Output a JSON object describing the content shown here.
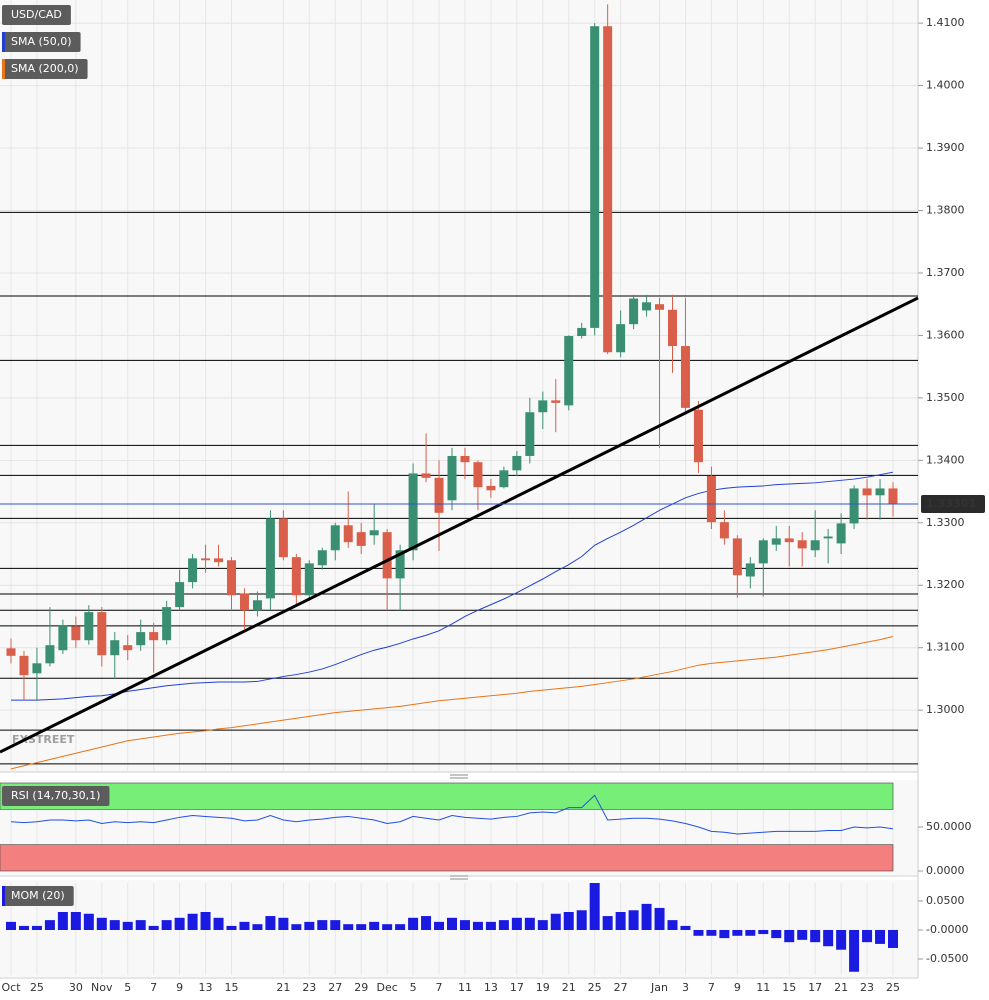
{
  "chart_data": [
    {
      "type": "candlestick",
      "watermark": "FXSTREET",
      "categories": [
        "Oct",
        null,
        "25",
        null,
        null,
        "30",
        null,
        "Nov",
        null,
        "5",
        null,
        "7",
        null,
        "9",
        null,
        "13",
        null,
        "15",
        null,
        null,
        null,
        "21",
        null,
        "23",
        null,
        "27",
        null,
        "29",
        null,
        "Dec",
        null,
        "5",
        null,
        "7",
        null,
        "11",
        null,
        "13",
        null,
        "17",
        null,
        "19",
        null,
        "21",
        null,
        "25",
        null,
        "27",
        null,
        null,
        "Jan",
        null,
        "3",
        null,
        "7",
        null,
        "9",
        null,
        "11",
        null,
        "15",
        null,
        "17",
        null,
        "21",
        null,
        "23",
        null,
        "25"
      ],
      "ylim": [
        1.2901,
        1.4137
      ],
      "yticks": [
        {
          "value": 1.3,
          "label": "1.3000"
        },
        {
          "value": 1.31,
          "label": "1.3100"
        },
        {
          "value": 1.32,
          "label": "1.3200"
        },
        {
          "value": 1.33,
          "label": "1.3300"
        },
        {
          "value": 1.34,
          "label": "1.3400"
        },
        {
          "value": 1.35,
          "label": "1.3500"
        },
        {
          "value": 1.36,
          "label": "1.3600"
        },
        {
          "value": 1.37,
          "label": "1.3700"
        },
        {
          "value": 1.38,
          "label": "1.3800"
        },
        {
          "value": 1.39,
          "label": "1.3900"
        },
        {
          "value": 1.4,
          "label": "1.4000"
        },
        {
          "value": 1.41,
          "label": "1.4100"
        }
      ],
      "grid": true,
      "last_price": 1.33301,
      "last_price_color": "#3355cc",
      "levels": [
        1.3797,
        1.3663,
        1.356,
        1.3424,
        1.3376,
        1.3307,
        1.3227,
        1.3186,
        1.316,
        1.3135,
        1.3051,
        1.2968,
        1.2914
      ],
      "levels_color": "#000000",
      "trendline": {
        "values": [
          1.2933,
          1.366
        ],
        "color": "#000000"
      },
      "series": [
        {
          "name": "USD/CAD",
          "up_color": "#3a8f72",
          "down_color": "#d95f4b",
          "open": [
            1.3099,
            1.3087,
            1.3059,
            1.3075,
            1.3096,
            1.3134,
            1.3112,
            1.3157,
            1.3088,
            1.3104,
            1.3104,
            1.3125,
            1.3112,
            1.3165,
            1.3205,
            1.3243,
            1.3243,
            1.324,
            1.3187,
            1.316,
            1.3179,
            1.3307,
            1.3245,
            1.3184,
            1.3232,
            1.3256,
            1.3296,
            1.3285,
            1.328,
            1.3285,
            1.3211,
            1.3256,
            1.3379,
            1.3372,
            1.3336,
            1.3407,
            1.3397,
            1.3359,
            1.3357,
            1.3384,
            1.3407,
            1.3477,
            1.3496,
            1.3488,
            1.3599,
            1.3612,
            1.4095,
            1.3573,
            1.3618,
            1.364,
            1.365,
            1.3641,
            1.3583,
            1.3481,
            1.3375,
            1.3301,
            1.3275,
            1.3214,
            1.3235,
            1.3265,
            1.3275,
            1.3272,
            1.3256,
            1.3275,
            1.3267,
            1.3299,
            1.3355,
            1.3344,
            1.3355
          ],
          "high": [
            1.3115,
            1.3095,
            1.31,
            1.3165,
            1.3145,
            1.315,
            1.3168,
            1.3165,
            1.3125,
            1.312,
            1.3145,
            1.314,
            1.3175,
            1.3225,
            1.325,
            1.3265,
            1.3265,
            1.3245,
            1.3195,
            1.319,
            1.332,
            1.332,
            1.325,
            1.324,
            1.326,
            1.33,
            1.335,
            1.33,
            1.333,
            1.329,
            1.3265,
            1.3395,
            1.3443,
            1.34,
            1.342,
            1.342,
            1.34,
            1.337,
            1.339,
            1.3415,
            1.35,
            1.351,
            1.353,
            1.36,
            1.362,
            1.41,
            1.413,
            1.364,
            1.3665,
            1.3665,
            1.366,
            1.3665,
            1.366,
            1.3495,
            1.339,
            1.332,
            1.328,
            1.3245,
            1.3275,
            1.3295,
            1.3295,
            1.3285,
            1.332,
            1.329,
            1.3315,
            1.336,
            1.337,
            1.337,
            1.3365
          ],
          "low": [
            1.3075,
            1.3016,
            1.3015,
            1.307,
            1.309,
            1.31,
            1.3105,
            1.307,
            1.305,
            1.308,
            1.3095,
            1.306,
            1.3105,
            1.316,
            1.3195,
            1.322,
            1.323,
            1.316,
            1.313,
            1.315,
            1.316,
            1.324,
            1.317,
            1.3175,
            1.3225,
            1.324,
            1.326,
            1.325,
            1.3265,
            1.316,
            1.316,
            1.324,
            1.3365,
            1.3255,
            1.332,
            1.337,
            1.332,
            1.334,
            1.3355,
            1.3375,
            1.3395,
            1.345,
            1.3445,
            1.348,
            1.3595,
            1.36,
            1.357,
            1.3565,
            1.361,
            1.363,
            1.342,
            1.354,
            1.3475,
            1.338,
            1.329,
            1.3265,
            1.318,
            1.3195,
            1.3182,
            1.3255,
            1.323,
            1.323,
            1.3245,
            1.3235,
            1.325,
            1.329,
            1.3305,
            1.3305,
            1.331
          ],
          "close": [
            1.3087,
            1.3056,
            1.3075,
            1.3104,
            1.3135,
            1.3112,
            1.3157,
            1.3088,
            1.3112,
            1.3096,
            1.3125,
            1.3112,
            1.3165,
            1.3205,
            1.3243,
            1.324,
            1.3237,
            1.3184,
            1.316,
            1.3176,
            1.3307,
            1.3245,
            1.3184,
            1.3235,
            1.3256,
            1.3296,
            1.3269,
            1.3263,
            1.3288,
            1.3211,
            1.3256,
            1.3379,
            1.3372,
            1.3316,
            1.3407,
            1.3397,
            1.3357,
            1.3352,
            1.3384,
            1.3407,
            1.3477,
            1.3496,
            1.3492,
            1.3599,
            1.3612,
            1.4095,
            1.3573,
            1.3618,
            1.3659,
            1.3653,
            1.3641,
            1.3583,
            1.3484,
            1.3397,
            1.3301,
            1.3275,
            1.3216,
            1.3235,
            1.3272,
            1.3275,
            1.3269,
            1.3259,
            1.3272,
            1.3278,
            1.3299,
            1.3355,
            1.3344,
            1.3355,
            1.333
          ]
        },
        {
          "name": "SMA (50,0)",
          "color": "#2040d0",
          "values": [
            1.3016,
            1.3016,
            1.3016,
            1.3017,
            1.3018,
            1.302,
            1.3022,
            1.3023,
            1.3026,
            1.303,
            1.3033,
            1.3036,
            1.3039,
            1.3041,
            1.3043,
            1.3044,
            1.3045,
            1.3045,
            1.3045,
            1.3046,
            1.305,
            1.3054,
            1.3057,
            1.3061,
            1.3066,
            1.3073,
            1.3081,
            1.3089,
            1.3096,
            1.3101,
            1.3107,
            1.3114,
            1.312,
            1.3127,
            1.3138,
            1.315,
            1.316,
            1.3169,
            1.3178,
            1.3188,
            1.3199,
            1.321,
            1.3222,
            1.3233,
            1.3246,
            1.3264,
            1.3275,
            1.3285,
            1.3296,
            1.3308,
            1.332,
            1.333,
            1.334,
            1.3347,
            1.3352,
            1.3355,
            1.3357,
            1.3358,
            1.3359,
            1.3361,
            1.3362,
            1.3363,
            1.3364,
            1.3366,
            1.3368,
            1.337,
            1.3373,
            1.3377,
            1.3381
          ]
        },
        {
          "name": "SMA (200,0)",
          "color": "#e8751a",
          "values": [
            1.2906,
            1.2911,
            1.2916,
            1.2921,
            1.2926,
            1.2931,
            1.2936,
            1.2941,
            1.2946,
            1.2951,
            1.2954,
            1.2957,
            1.296,
            1.2963,
            1.2965,
            1.2967,
            1.297,
            1.2972,
            1.2975,
            1.2978,
            1.2981,
            1.2984,
            1.2987,
            1.299,
            1.2993,
            1.2996,
            1.2998,
            1.3,
            1.3002,
            1.3004,
            1.3006,
            1.3009,
            1.3012,
            1.3015,
            1.3017,
            1.3019,
            1.3021,
            1.3023,
            1.3025,
            1.3027,
            1.303,
            1.3032,
            1.3034,
            1.3036,
            1.3038,
            1.3041,
            1.3044,
            1.3047,
            1.305,
            1.3054,
            1.3058,
            1.3062,
            1.3067,
            1.3072,
            1.3075,
            1.3077,
            1.3079,
            1.3081,
            1.3083,
            1.3085,
            1.3088,
            1.3091,
            1.3094,
            1.3097,
            1.3101,
            1.3105,
            1.3109,
            1.3113,
            1.3118
          ]
        }
      ]
    },
    {
      "type": "line",
      "ylim": [
        0,
        100
      ],
      "yticks": [
        {
          "value": 0,
          "label": "0.0000"
        },
        {
          "value": 50,
          "label": "50.0000"
        }
      ],
      "bands": [
        {
          "from": 70,
          "to": 100,
          "color": "#77ee77"
        },
        {
          "from": 0,
          "to": 30,
          "color": "#f47f7f"
        }
      ],
      "series": [
        {
          "name": "RSI (14,70,30,1)",
          "color": "#2050e0",
          "values": [
            56,
            55,
            56,
            58,
            58,
            57,
            58,
            54,
            56,
            55,
            56,
            55,
            58,
            61,
            63,
            62,
            61,
            60,
            57,
            58,
            63,
            58,
            56,
            58,
            59,
            61,
            62,
            60,
            58,
            54,
            56,
            62,
            60,
            58,
            63,
            61,
            60,
            59,
            61,
            62,
            66,
            67,
            66,
            72,
            72,
            86,
            58,
            59,
            60,
            60,
            59,
            57,
            54,
            50,
            45,
            44,
            42,
            43,
            44,
            45,
            45,
            45,
            45,
            46,
            46,
            50,
            49,
            50,
            48
          ]
        }
      ]
    },
    {
      "type": "bar",
      "ylim": [
        -0.0776,
        0.081
      ],
      "yticks": [
        {
          "value": 0.05,
          "label": "0.0500"
        },
        {
          "value": 0,
          "label": "-0.0000"
        },
        {
          "value": -0.05,
          "label": "-0.0500"
        }
      ],
      "series": [
        {
          "name": "MOM (20)",
          "color": "#1a1ae0",
          "values": [
            0.014,
            0.007,
            0.007,
            0.017,
            0.031,
            0.031,
            0.028,
            0.021,
            0.017,
            0.014,
            0.017,
            0.007,
            0.017,
            0.021,
            0.028,
            0.031,
            0.021,
            0.007,
            0.014,
            0.01,
            0.024,
            0.021,
            0.01,
            0.014,
            0.017,
            0.017,
            0.01,
            0.01,
            0.014,
            0.01,
            0.01,
            0.021,
            0.024,
            0.014,
            0.021,
            0.017,
            0.014,
            0.014,
            0.017,
            0.021,
            0.021,
            0.017,
            0.028,
            0.031,
            0.034,
            0.081,
            0.024,
            0.031,
            0.034,
            0.045,
            0.038,
            0.017,
            0.007,
            -0.01,
            -0.01,
            -0.014,
            -0.01,
            -0.01,
            -0.007,
            -0.014,
            -0.021,
            -0.017,
            -0.021,
            -0.028,
            -0.034,
            -0.072,
            -0.021,
            -0.024,
            -0.031
          ]
        }
      ]
    }
  ]
}
